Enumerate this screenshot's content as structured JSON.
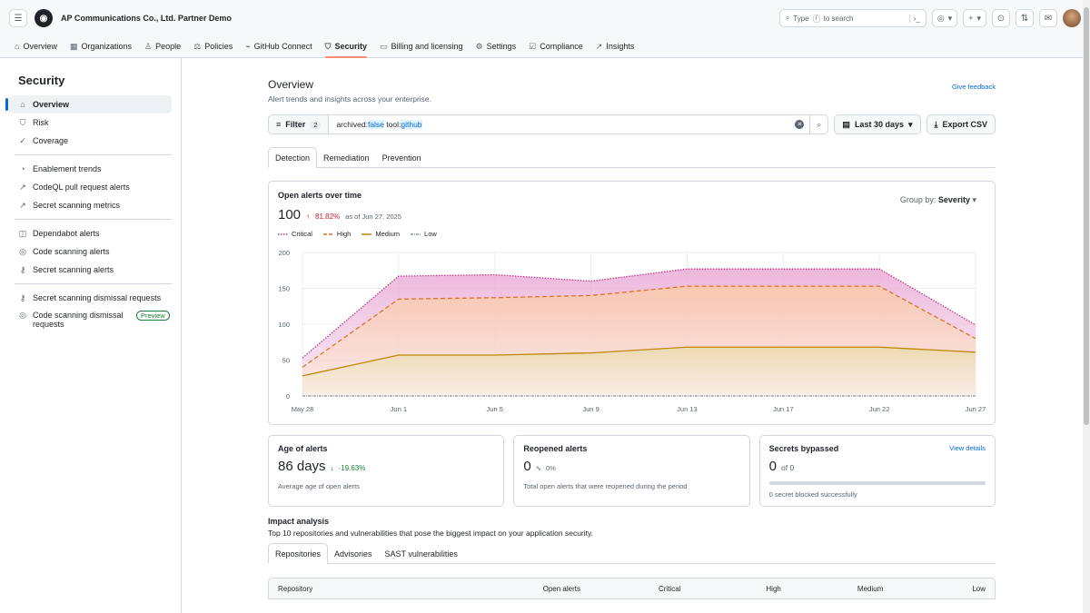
{
  "header": {
    "org_title": "AP Communications Co., Ltd. Partner Demo",
    "search_prefix": "Type",
    "search_key": "/",
    "search_suffix": "to search"
  },
  "nav": [
    {
      "label": "Overview",
      "icon": "home-icon"
    },
    {
      "label": "Organizations",
      "icon": "organization-icon"
    },
    {
      "label": "People",
      "icon": "person-icon"
    },
    {
      "label": "Policies",
      "icon": "law-icon"
    },
    {
      "label": "GitHub Connect",
      "icon": "plug-icon"
    },
    {
      "label": "Security",
      "icon": "shield-icon",
      "active": true
    },
    {
      "label": "Billing and licensing",
      "icon": "credit-card-icon"
    },
    {
      "label": "Settings",
      "icon": "gear-icon"
    },
    {
      "label": "Compliance",
      "icon": "checklist-icon"
    },
    {
      "label": "Insights",
      "icon": "graph-icon"
    }
  ],
  "sidebar": {
    "title": "Security",
    "items": [
      {
        "label": "Overview"
      },
      {
        "label": "Risk"
      },
      {
        "label": "Coverage"
      },
      {
        "label": "Enablement trends"
      },
      {
        "label": "CodeQL pull request alerts"
      },
      {
        "label": "Secret scanning metrics"
      },
      {
        "label": "Dependabot alerts"
      },
      {
        "label": "Code scanning alerts"
      },
      {
        "label": "Secret scanning alerts"
      },
      {
        "label": "Secret scanning dismissal requests"
      },
      {
        "label": "Code scanning dismissal requests",
        "badge": "Preview"
      }
    ]
  },
  "page": {
    "title": "Overview",
    "subtitle": "Alert trends and insights across your enterprise.",
    "feedback": "Give feedback",
    "filter_label": "Filter",
    "filter_count": "2",
    "query": {
      "k1": "archived:",
      "v1": "false",
      "k2": "tool:",
      "v2": "github"
    },
    "date_range": "Last 30 days",
    "export": "Export CSV",
    "tabs": [
      "Detection",
      "Remediation",
      "Prevention"
    ]
  },
  "chart_card": {
    "title": "Open alerts over time",
    "group_by_label": "Group by:",
    "group_by_value": "Severity",
    "value": "100",
    "change": "81.82%",
    "as_of": "as of Jun 27, 2025"
  },
  "chart_data": {
    "type": "area",
    "x": [
      "May 28",
      "Jun 1",
      "Jun 5",
      "Jun 9",
      "Jun 13",
      "Jun 17",
      "Jun 22",
      "Jun 27"
    ],
    "ylim": [
      0,
      200
    ],
    "yticks": [
      0,
      50,
      100,
      150,
      200
    ],
    "series": [
      {
        "name": "Critical",
        "color": "#bf3989",
        "values": [
          53,
          167,
          169,
          160,
          177,
          177,
          177,
          99
        ]
      },
      {
        "name": "High",
        "color": "#e16f24",
        "values": [
          40,
          135,
          137,
          140,
          153,
          153,
          153,
          80
        ]
      },
      {
        "name": "Medium",
        "color": "#bf8700",
        "values": [
          28,
          57,
          57,
          60,
          68,
          68,
          68,
          61
        ]
      },
      {
        "name": "Low",
        "color": "#8c959f",
        "values": [
          0,
          0,
          0,
          0,
          0,
          0,
          0,
          0
        ]
      }
    ]
  },
  "stats": {
    "age": {
      "title": "Age of alerts",
      "value": "86 days",
      "change": "-19.63%",
      "desc": "Average age of open alerts"
    },
    "reopened": {
      "title": "Reopened alerts",
      "value": "0",
      "change": "0%",
      "desc": "Total open alerts that were reopened during the period"
    },
    "bypassed": {
      "title": "Secrets bypassed",
      "link": "View details",
      "value": "0",
      "of": "of 0",
      "progress": 0,
      "desc": "0 secret blocked successfully"
    }
  },
  "impact": {
    "title": "Impact analysis",
    "subtitle": "Top 10 repositories and vulnerabilities that pose the biggest impact on your application security.",
    "tabs": [
      "Repositories",
      "Advisories",
      "SAST vulnerabilities"
    ],
    "columns": [
      "Repository",
      "Open alerts",
      "Critical",
      "High",
      "Medium",
      "Low"
    ]
  }
}
